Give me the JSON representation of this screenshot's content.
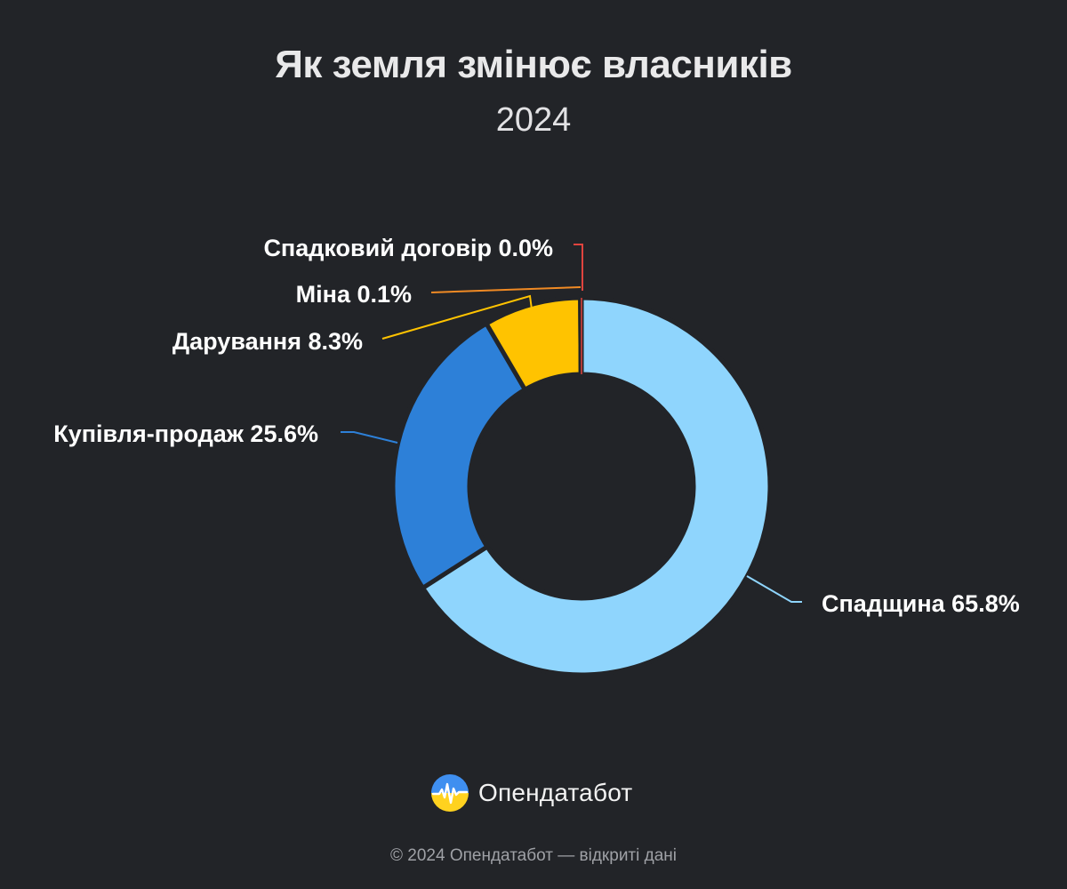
{
  "header": {
    "title": "Як земля змінює власників",
    "subtitle": "2024"
  },
  "chart_data": {
    "type": "pie",
    "variant": "donut",
    "title": "Як земля змінює власників",
    "subtitle": "2024",
    "slices": [
      {
        "label": "Спадщина 65.8%",
        "value": 65.8,
        "color": "#8fd5fd"
      },
      {
        "label": "Купівля-продаж 25.6%",
        "value": 25.6,
        "color": "#2d80d8"
      },
      {
        "label": "Дарування 8.3%",
        "value": 8.3,
        "color": "#ffc300"
      },
      {
        "label": "Міна 0.1%",
        "value": 0.1,
        "color": "#f08a24"
      },
      {
        "label": "Спадковий договір 0.0%",
        "value": 0.0,
        "color": "#e0443e"
      }
    ],
    "legend": "none",
    "labels": "outside-with-leader-lines"
  },
  "brand": {
    "name": "Опендатабот",
    "logo_icon": "opendatabot-logo-icon"
  },
  "footer": {
    "text": "© 2024 Опендатабот — відкриті дані"
  }
}
